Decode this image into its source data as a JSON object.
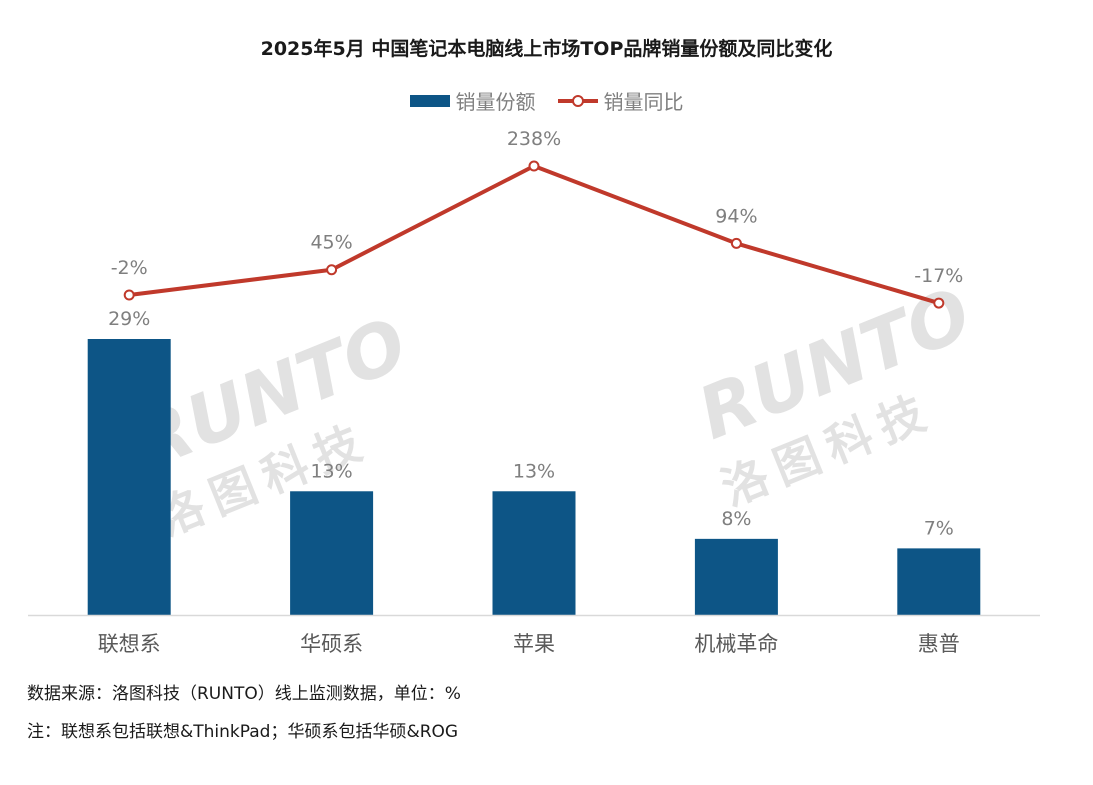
{
  "title": "2025年5月 中国笔记本电脑线上市场TOP品牌销量份额及同比变化",
  "colors": {
    "bar": "#0d5586",
    "line": "#c0392b",
    "label": "#7f7f7f",
    "axis": "#d9d9d9",
    "watermark": "#d6d6d6"
  },
  "legend": {
    "bar_label": "销量份额",
    "line_label": "销量同比"
  },
  "watermark": {
    "latin": "RUNTO",
    "chinese": "洛图科技"
  },
  "chart_data": {
    "type": "bar",
    "categories": [
      "联想系",
      "华硕系",
      "苹果",
      "机械革命",
      "惠普"
    ],
    "series": [
      {
        "name": "销量份额",
        "type": "bar",
        "values": [
          29,
          13,
          13,
          8,
          7
        ],
        "labels": [
          "29%",
          "13%",
          "13%",
          "8%",
          "7%"
        ]
      },
      {
        "name": "销量同比",
        "type": "line",
        "values": [
          -2,
          45,
          238,
          94,
          -17
        ],
        "labels": [
          "-2%",
          "45%",
          "238%",
          "94%",
          "-17%"
        ]
      }
    ]
  },
  "notes": {
    "source": "数据来源：洛图科技（RUNTO）线上监测数据，单位：%",
    "brands": "注：联想系包括联想&ThinkPad；华硕系包括华硕&ROG"
  }
}
